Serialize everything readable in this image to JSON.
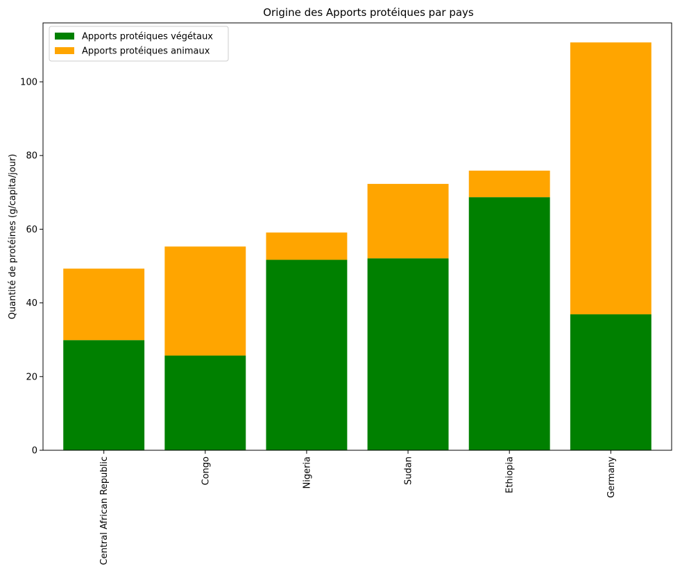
{
  "chart_data": {
    "type": "bar",
    "stacked": true,
    "title": "Origine des Apports protéiques par pays",
    "xlabel": "",
    "ylabel": "Quantité de protéines (g/capita/jour)",
    "categories": [
      "Central African Republic",
      "Congo",
      "Nigeria",
      "Sudan",
      "Ethiopia",
      "Germany"
    ],
    "series": [
      {
        "name": "Apports protéiques végétaux",
        "color": "#008000",
        "values": [
          29.9,
          25.7,
          51.7,
          52.1,
          68.7,
          36.9
        ]
      },
      {
        "name": "Apports protéiques animaux",
        "color": "#ffa500",
        "values": [
          19.4,
          29.6,
          7.4,
          20.2,
          7.2,
          73.8
        ]
      }
    ],
    "ylim": [
      0,
      116
    ],
    "yticks": [
      0,
      20,
      40,
      60,
      80,
      100
    ],
    "legend_position": "top-left",
    "grid": false,
    "x_tick_rotation": 90
  }
}
